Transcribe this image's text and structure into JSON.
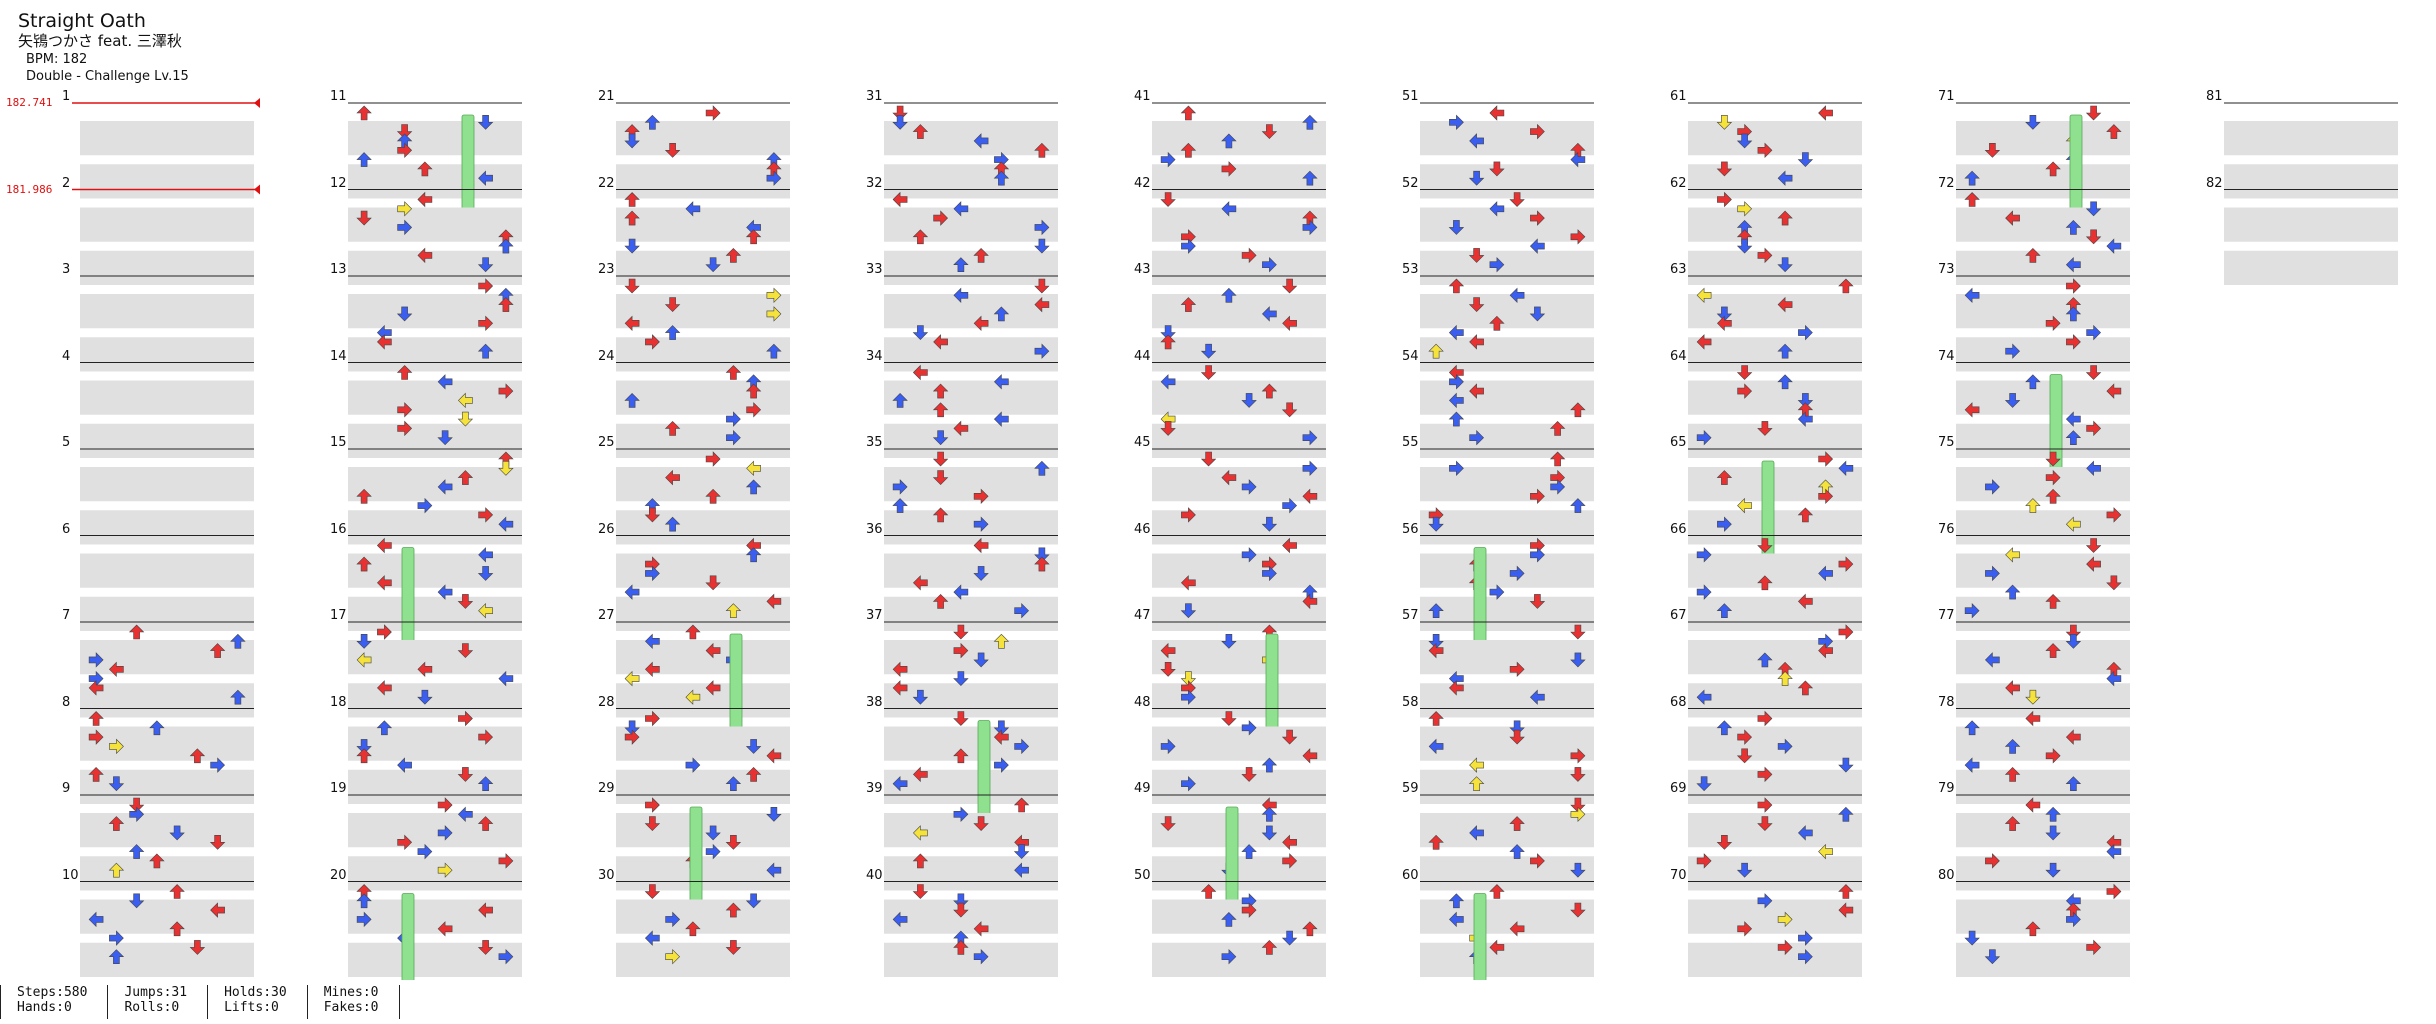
{
  "song": {
    "title": "Straight Oath",
    "artist": "矢鴇つかさ feat. 三澤秋",
    "bpm_text": "BPM: 182",
    "difficulty_text": "Double - Challenge Lv.15"
  },
  "bpm_changes": [
    {
      "measure": 1,
      "label": "182.741"
    },
    {
      "measure": 2,
      "label": "181.986"
    }
  ],
  "measures": {
    "first": 1,
    "last": 82
  },
  "stats": {
    "steps": "Steps:580",
    "hands": "Hands:0",
    "jumps": "Jumps:31",
    "rolls": "Rolls:0",
    "holds": "Holds:30",
    "lifts": "Lifts:0",
    "mines": "Mines:0",
    "fakes": "Fakes:0"
  },
  "colors": {
    "quarter_note": "#e83232",
    "eighth_note": "#3a5ef0",
    "sixteenth_note": "#f5e23a",
    "hold": "#8fe08f",
    "lane_stripe": "#e0e0e0",
    "bpm_marker": "#e01010"
  },
  "icons": [
    "left-arrow-icon",
    "down-arrow-icon",
    "up-arrow-icon",
    "right-arrow-icon",
    "hold-bar-icon"
  ]
}
